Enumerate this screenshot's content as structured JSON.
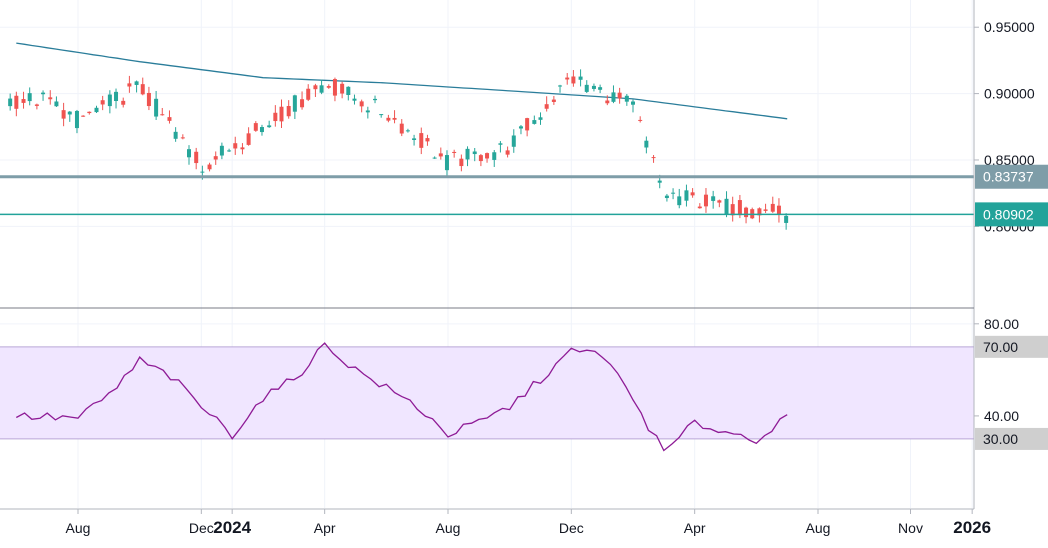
{
  "colors": {
    "bullish": "#26a69a",
    "bearish": "#ef5350",
    "moving_average": "#2a7d9a",
    "support_primary": "#7e9da8",
    "support_secondary": "#22a39a",
    "rsi_line": "#8e1b96",
    "rsi_band_fill": "#f0e6ff",
    "rsi_band_border": "#b9a6d6",
    "level_badge_bg": "#cfcfcf",
    "grid": "#f0f3fa",
    "axis_line": "#b2b5be"
  },
  "chart_data": [
    {
      "type": "candlestick",
      "price_axis": {
        "ylim": [
          0.74,
          0.9705
        ],
        "ticks": [
          "0.95000",
          "0.90000",
          "0.85000",
          "0.80000"
        ],
        "tick_values": [
          0.95,
          0.9,
          0.85,
          0.8
        ]
      },
      "candles_summary": {
        "x": [
          "2023-07",
          "2023-08",
          "2023-10",
          "2023-12",
          "2024-02",
          "2024-04",
          "2024-06",
          "2024-08",
          "2024-10",
          "2024-12",
          "2025-02",
          "2025-03",
          "2025-05",
          "2025-07"
        ],
        "close": [
          0.895,
          0.88,
          0.905,
          0.845,
          0.875,
          0.908,
          0.885,
          0.848,
          0.86,
          0.912,
          0.89,
          0.825,
          0.815,
          0.809
        ]
      },
      "moving_average": {
        "x": [
          "2023-06",
          "2023-10",
          "2024-02",
          "2024-06",
          "2024-10",
          "2025-02",
          "2025-07"
        ],
        "values": [
          0.938,
          0.924,
          0.912,
          0.908,
          0.902,
          0.896,
          0.881
        ]
      },
      "horizontal_levels": [
        {
          "value": 0.83737,
          "label": "0.83737"
        },
        {
          "value": 0.80902,
          "label": "0.80902"
        }
      ]
    },
    {
      "type": "line",
      "series_type": "rsi",
      "axis": {
        "ylim": [
          0,
          86
        ],
        "ticks": [
          "80.00",
          "40.00"
        ],
        "tick_values": [
          80,
          40
        ],
        "band": [
          30,
          70
        ],
        "band_labels": [
          "70.00",
          "30.00"
        ]
      },
      "x": [
        "2023-06",
        "2023-08",
        "2023-09",
        "2023-10",
        "2023-11",
        "2023-12",
        "2024-01",
        "2024-02",
        "2024-03",
        "2024-04",
        "2024-05",
        "2024-06",
        "2024-07",
        "2024-08",
        "2024-09",
        "2024-10",
        "2024-11",
        "2024-12",
        "2025-01",
        "2025-02",
        "2025-03",
        "2025-04",
        "2025-05",
        "2025-06",
        "2025-07"
      ],
      "values": [
        40,
        39,
        49,
        64,
        57,
        44,
        32,
        48,
        56,
        71,
        60,
        52,
        44,
        32,
        37,
        44,
        56,
        68,
        67,
        47,
        24,
        37,
        33,
        30,
        39
      ]
    }
  ],
  "time_axis": {
    "labels": [
      {
        "text": "Aug",
        "date": "2023-08"
      },
      {
        "text": "Dec",
        "date": "2023-12"
      },
      {
        "text": "2024",
        "date": "2024-01",
        "major": true
      },
      {
        "text": "Apr",
        "date": "2024-04"
      },
      {
        "text": "Aug",
        "date": "2024-08"
      },
      {
        "text": "Dec",
        "date": "2024-12"
      },
      {
        "text": "Apr",
        "date": "2025-04"
      },
      {
        "text": "Aug",
        "date": "2025-08"
      },
      {
        "text": "Nov",
        "date": "2025-11"
      },
      {
        "text": "2026",
        "date": "2026-01",
        "major": true
      }
    ]
  }
}
